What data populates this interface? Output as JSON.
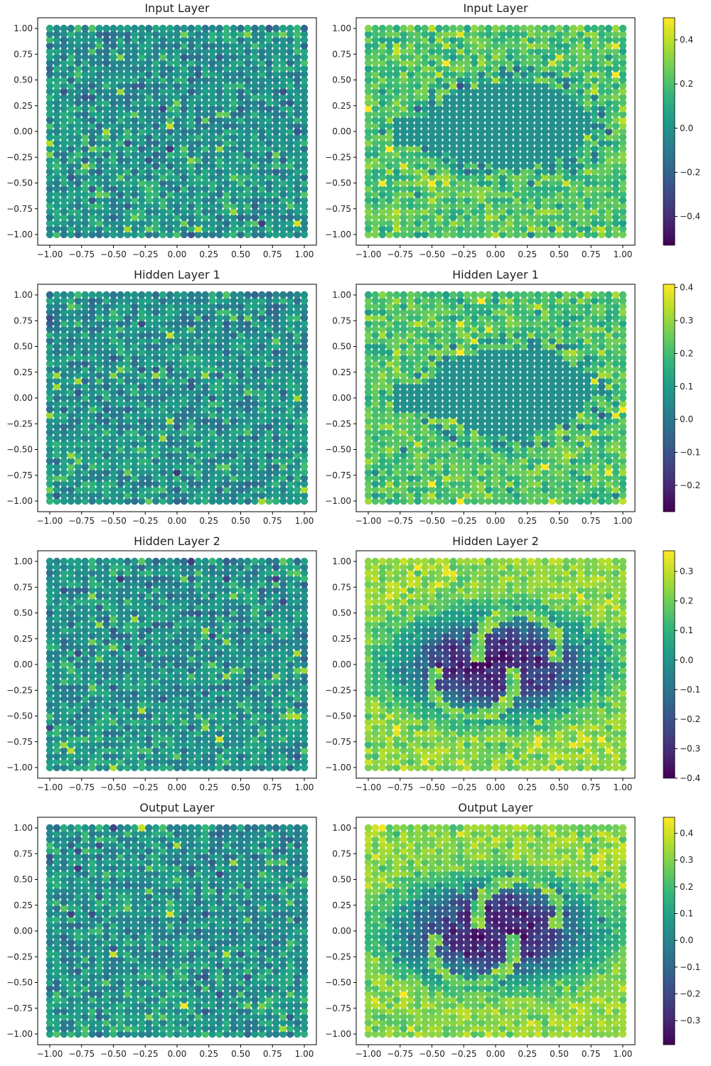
{
  "chart_data": {
    "type": "scatter",
    "colormap": "viridis",
    "colormap_stops": [
      "#440154",
      "#482878",
      "#3e4989",
      "#31688e",
      "#26828e",
      "#1f9e89",
      "#35b779",
      "#6ece58",
      "#b5de2b",
      "#fde725"
    ],
    "grid": false,
    "xlim": [
      -1.0,
      1.0
    ],
    "ylim": [
      -1.0,
      1.0
    ],
    "point_grid_per_axis": 37,
    "xticks": [
      "−1.00",
      "−0.75",
      "−0.50",
      "−0.25",
      "0.00",
      "0.25",
      "0.50",
      "0.75",
      "1.00"
    ],
    "yticks": [
      "−1.00",
      "−0.75",
      "−0.50",
      "−0.25",
      "0.00",
      "0.25",
      "0.50",
      "0.75",
      "1.00"
    ],
    "rows": [
      {
        "title": "Input Layer",
        "left_pattern": "noise",
        "right_pattern": "blob",
        "color_range": [
          -0.53,
          0.5
        ],
        "colorbar_ticks": [
          "0.4",
          "0.2",
          "0.0",
          "−0.2",
          "−0.4"
        ],
        "colorbar_tick_values": [
          0.4,
          0.2,
          0.0,
          -0.2,
          -0.4
        ]
      },
      {
        "title": "Hidden Layer 1",
        "left_pattern": "noise",
        "right_pattern": "blob",
        "color_range": [
          -0.28,
          0.41
        ],
        "colorbar_ticks": [
          "0.4",
          "0.3",
          "0.2",
          "0.1",
          "0.0",
          "−0.1",
          "−0.2"
        ],
        "colorbar_tick_values": [
          0.4,
          0.3,
          0.2,
          0.1,
          0.0,
          -0.1,
          -0.2
        ]
      },
      {
        "title": "Hidden Layer 2",
        "left_pattern": "noise",
        "right_pattern": "moons",
        "color_range": [
          -0.4,
          0.37
        ],
        "colorbar_ticks": [
          "0.3",
          "0.2",
          "0.1",
          "0.0",
          "−0.1",
          "−0.2",
          "−0.3",
          "−0.4"
        ],
        "colorbar_tick_values": [
          0.3,
          0.2,
          0.1,
          0.0,
          -0.1,
          -0.2,
          -0.3,
          -0.4
        ]
      },
      {
        "title": "Output Layer",
        "left_pattern": "noise",
        "right_pattern": "moons",
        "color_range": [
          -0.39,
          0.46
        ],
        "colorbar_ticks": [
          "0.4",
          "0.3",
          "0.2",
          "0.1",
          "0.0",
          "−0.1",
          "−0.2",
          "−0.3"
        ],
        "colorbar_tick_values": [
          0.4,
          0.3,
          0.2,
          0.1,
          0.0,
          -0.1,
          -0.2,
          -0.3
        ]
      }
    ]
  }
}
